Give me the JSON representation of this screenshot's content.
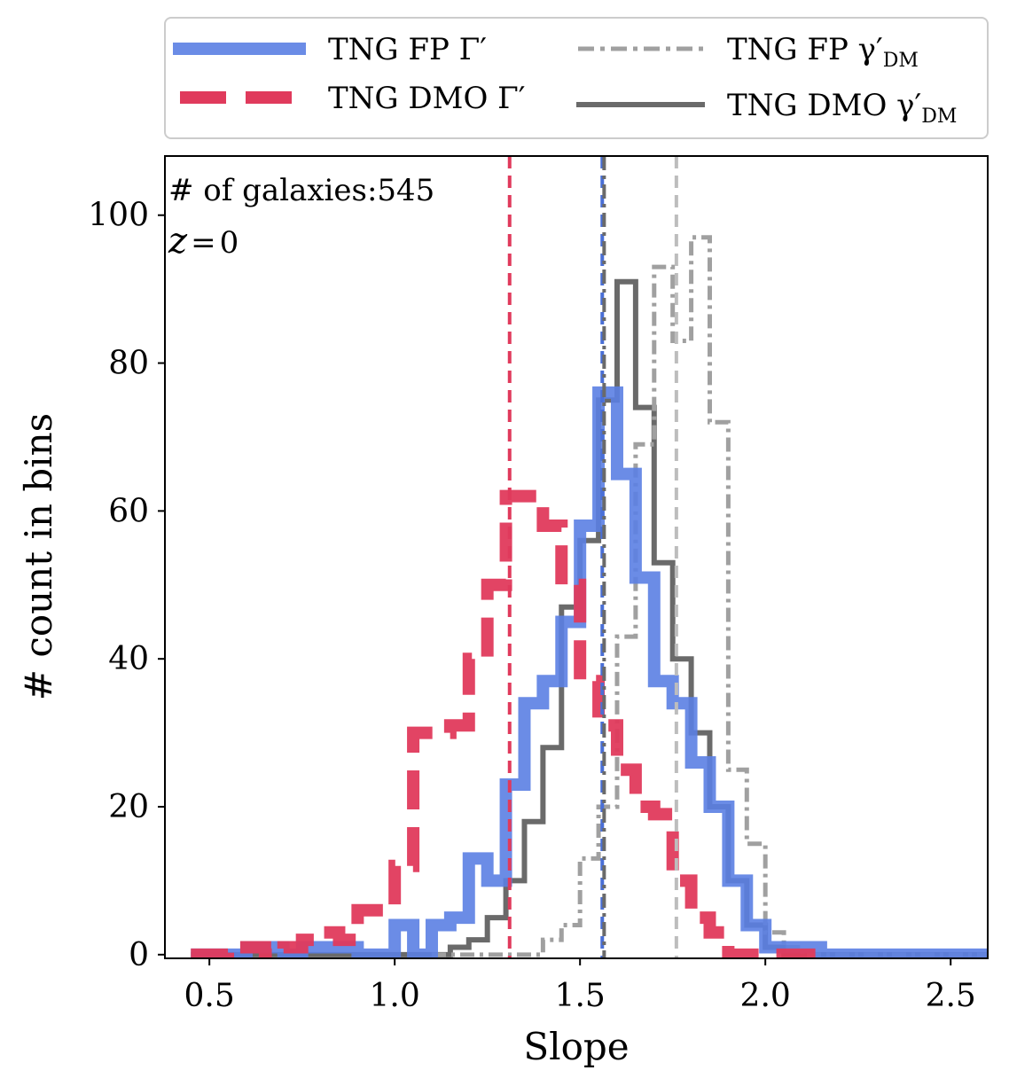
{
  "chart_data": {
    "type": "step-histogram",
    "xlabel": "Slope",
    "ylabel": "# count in bins",
    "xlim": [
      0.38,
      2.6
    ],
    "ylim": [
      -0.5,
      108
    ],
    "xticks": [
      0.5,
      1.0,
      1.5,
      2.0,
      2.5
    ],
    "xtick_labels": [
      "0.5",
      "1.0",
      "1.5",
      "2.0",
      "2.5"
    ],
    "yticks": [
      0,
      20,
      40,
      60,
      80,
      100
    ],
    "ytick_labels": [
      "0",
      "20",
      "40",
      "60",
      "80",
      "100"
    ],
    "annotations": [
      "# of galaxies:545",
      "z = 0"
    ],
    "annotation_parts": {
      "var": "z",
      "eq": "=",
      "val": "0"
    },
    "legend": {
      "placement": "above plot, two columns",
      "entries": [
        {
          "label": "TNG FP Γ′",
          "series": "fp_gamma"
        },
        {
          "label": "TNG FP γ′DM",
          "series": "fp_dm",
          "main": "TNG FP γ′",
          "sub": "DM"
        },
        {
          "label": "TNG DMO Γ′",
          "series": "dmo_gamma"
        },
        {
          "label": "TNG DMO γ′DM",
          "series": "dmo_dm",
          "main": "TNG DMO γ′",
          "sub": "DM"
        }
      ]
    },
    "series": [
      {
        "id": "dmo_dm",
        "name": "TNG DMO γ′DM",
        "color": "#6a6a6a",
        "style": "solid",
        "width": 6,
        "opacity": 1,
        "edges": [
          0.45,
          0.5,
          0.55,
          0.6,
          0.65,
          0.7,
          0.75,
          0.8,
          0.85,
          0.9,
          0.95,
          1.0,
          1.05,
          1.1,
          1.15,
          1.2,
          1.25,
          1.3,
          1.35,
          1.4,
          1.45,
          1.5,
          1.55,
          1.6,
          1.65,
          1.7,
          1.75,
          1.8,
          1.85,
          1.9,
          1.95,
          2.0,
          2.05,
          2.1,
          2.15,
          2.6
        ],
        "counts": [
          0,
          0,
          0,
          0,
          0,
          0,
          0,
          0,
          0,
          0,
          0,
          0,
          0,
          0,
          1,
          2,
          5,
          10,
          18,
          28,
          47,
          56,
          75,
          91,
          74,
          53,
          40,
          30,
          20,
          10,
          4,
          1,
          0,
          0,
          0
        ]
      },
      {
        "id": "fp_dm",
        "name": "TNG FP γ′DM",
        "color": "#a0a0a0",
        "style": "dashdot",
        "width": 5,
        "opacity": 1,
        "edges": [
          1.1,
          1.15,
          1.2,
          1.25,
          1.3,
          1.35,
          1.4,
          1.45,
          1.5,
          1.55,
          1.6,
          1.65,
          1.7,
          1.75,
          1.8,
          1.85,
          1.9,
          1.95,
          2.0,
          2.05,
          2.1,
          2.15,
          2.6
        ],
        "counts": [
          0,
          0,
          0,
          0,
          0,
          0,
          2,
          4,
          13,
          20,
          43,
          69,
          93,
          83,
          97,
          72,
          25,
          15,
          3,
          1,
          0,
          0
        ]
      },
      {
        "id": "fp_gamma",
        "name": "TNG FP Γ′",
        "color": "#5b7fe3",
        "style": "solid",
        "width": 14,
        "opacity": 0.9,
        "edges": [
          0.45,
          0.5,
          0.55,
          0.6,
          0.65,
          0.7,
          0.75,
          0.8,
          0.85,
          0.9,
          0.95,
          1.0,
          1.05,
          1.1,
          1.15,
          1.2,
          1.25,
          1.3,
          1.35,
          1.4,
          1.45,
          1.5,
          1.55,
          1.6,
          1.65,
          1.7,
          1.75,
          1.8,
          1.85,
          1.9,
          1.95,
          2.0,
          2.05,
          2.1,
          2.15,
          2.6
        ],
        "counts": [
          0,
          0,
          0,
          1,
          1,
          0,
          1,
          1,
          1,
          0,
          0,
          4,
          0,
          4,
          5,
          13,
          10,
          23,
          34,
          37,
          45,
          58,
          76,
          65,
          51,
          37,
          34,
          26,
          20,
          10,
          4,
          1,
          1,
          1,
          0
        ]
      },
      {
        "id": "dmo_gamma",
        "name": "TNG DMO Γ′",
        "color": "#e03a5c",
        "style": "dashed",
        "width": 14,
        "opacity": 0.95,
        "edges": [
          0.45,
          0.5,
          0.55,
          0.6,
          0.65,
          0.7,
          0.75,
          0.8,
          0.85,
          0.9,
          0.95,
          1.0,
          1.05,
          1.1,
          1.15,
          1.2,
          1.25,
          1.3,
          1.35,
          1.4,
          1.45,
          1.5,
          1.55,
          1.6,
          1.65,
          1.7,
          1.75,
          1.8,
          1.85,
          1.9,
          1.95,
          2.0,
          2.05,
          2.1,
          2.15
        ],
        "counts": [
          0,
          0,
          1,
          1,
          0,
          1,
          2,
          3,
          2,
          6,
          6,
          12,
          30,
          30,
          31,
          40,
          50,
          62,
          62,
          58,
          50,
          37,
          31,
          25,
          20,
          19,
          10,
          5,
          3,
          0,
          0,
          0,
          0,
          0
        ]
      }
    ],
    "vertical_lines": [
      {
        "series": "dmo_gamma",
        "x": 1.31,
        "color": "#e03a5c",
        "style": "dashed"
      },
      {
        "series": "fp_gamma",
        "x": 1.56,
        "color": "#4a6fd6",
        "style": "dashed"
      },
      {
        "series": "dmo_dm",
        "x": 1.565,
        "color": "#6a6a6a",
        "style": "dashdot"
      },
      {
        "series": "fp_dm",
        "x": 1.76,
        "color": "#bdbdbd",
        "style": "dashed"
      }
    ]
  }
}
